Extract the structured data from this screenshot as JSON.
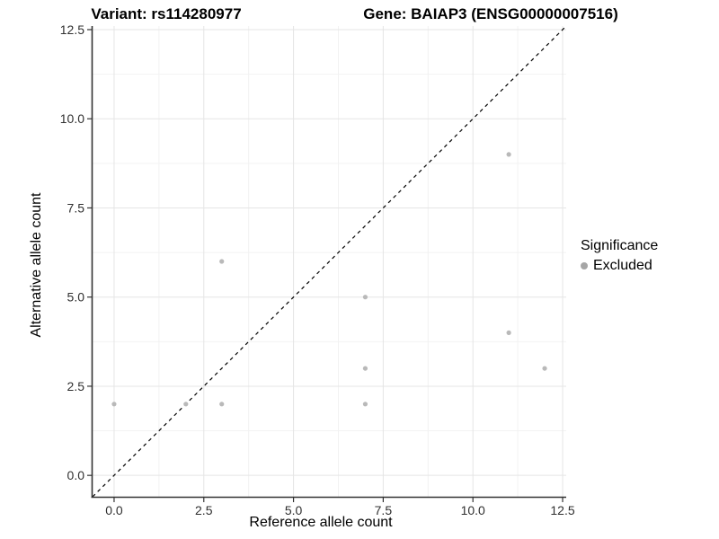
{
  "header": {
    "variant_title": "Variant: rs114280977",
    "gene_title": "Gene: BAIAP3 (ENSG00000007516)"
  },
  "chart_data": {
    "type": "scatter",
    "title": "Variant: rs114280977   Gene: BAIAP3 (ENSG00000007516)",
    "xlabel": "Reference allele count",
    "ylabel": "Alternative allele count",
    "xlim": [
      -0.6,
      12.6
    ],
    "ylim": [
      -0.6,
      12.6
    ],
    "x_ticks": {
      "values": [
        0,
        2.5,
        5,
        7.5,
        10,
        12.5
      ],
      "labels": [
        "0.0",
        "2.5",
        "5.0",
        "7.5",
        "10.0",
        "12.5"
      ]
    },
    "y_ticks": {
      "values": [
        0,
        2.5,
        5,
        7.5,
        10,
        12.5
      ],
      "labels": [
        "0.0",
        "2.5",
        "5.0",
        "7.5",
        "10.0",
        "12.5"
      ]
    },
    "minor_gridlines": {
      "x": [
        1.25,
        3.75,
        6.25,
        8.75,
        11.25
      ],
      "y": [
        1.25,
        3.75,
        6.25,
        8.75,
        11.25
      ]
    },
    "grid": "major+minor",
    "series": [
      {
        "name": "Excluded",
        "marker": "circle",
        "color": "#b9b9b9",
        "points": [
          [
            0,
            2
          ],
          [
            2,
            2
          ],
          [
            3,
            2
          ],
          [
            3,
            6
          ],
          [
            7,
            2
          ],
          [
            7,
            3
          ],
          [
            7,
            5
          ],
          [
            11,
            4
          ],
          [
            11,
            9
          ],
          [
            12,
            3
          ]
        ]
      }
    ],
    "reference_line": {
      "kind": "identity y=x",
      "style": "dashed",
      "color": "#000000"
    },
    "legend": {
      "position": "right",
      "title": "Significance",
      "entries": [
        {
          "label": "Excluded",
          "color": "#a6a6a6"
        }
      ]
    },
    "colors": {
      "major_grid": "#e5e5e5",
      "minor_grid": "#f2f2f2",
      "axis_line": "#333333",
      "tick_label": "#303030"
    }
  }
}
